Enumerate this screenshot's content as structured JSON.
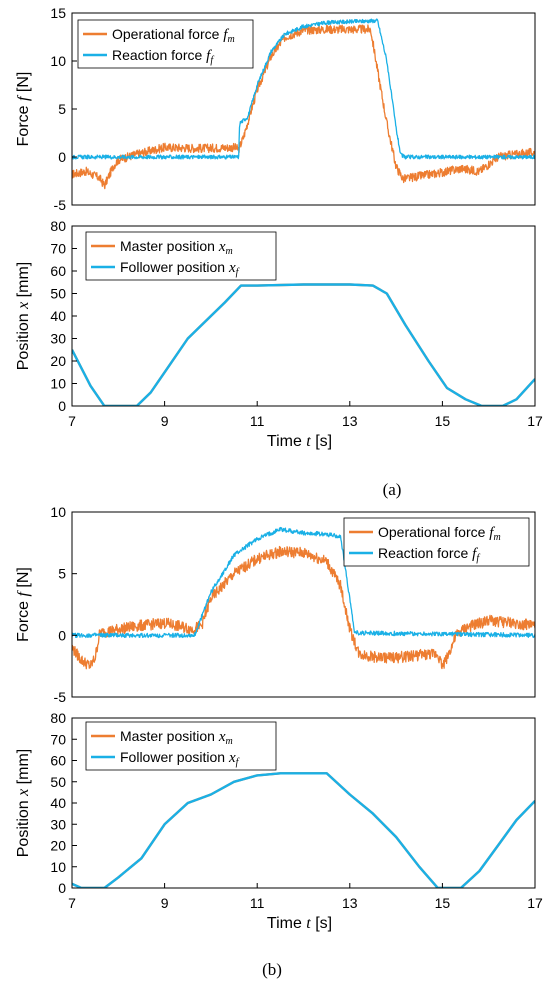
{
  "colors": {
    "master": "#ED7D31",
    "follower": "#1AB0E6"
  },
  "chart_data": [
    {
      "id": "a-force",
      "type": "line",
      "panel": "(a)",
      "ylabel": "Force f [N]",
      "xlim": [
        7,
        17
      ],
      "ylim": [
        -5,
        15
      ],
      "yticks": [
        "-5",
        "0",
        "5",
        "10",
        "15"
      ],
      "xticks": [],
      "legend_position": "top-left",
      "series": [
        {
          "name": "Operational force f_m",
          "label_main": "Operational force ",
          "label_sym": "f",
          "label_sub": "m",
          "color": "#ED7D31",
          "noise": 0.9,
          "x": [
            7.0,
            7.3,
            7.6,
            7.7,
            7.9,
            8.0,
            8.4,
            9.0,
            9.8,
            10.5,
            10.6,
            10.7,
            11.0,
            11.3,
            11.6,
            12.0,
            12.5,
            13.0,
            13.45,
            13.6,
            13.8,
            14.0,
            14.15,
            14.5,
            15.0,
            15.4,
            15.8,
            16.2,
            16.6,
            17.0
          ],
          "y": [
            -1.8,
            -1.5,
            -2.2,
            -3.0,
            -0.9,
            -0.3,
            0.3,
            1.0,
            0.9,
            1.0,
            0.8,
            2.0,
            7.0,
            10.5,
            12.5,
            13.2,
            13.3,
            13.3,
            13.3,
            9.0,
            3.5,
            -1.0,
            -2.3,
            -2.0,
            -1.6,
            -1.2,
            -1.5,
            0.0,
            0.3,
            0.5
          ]
        },
        {
          "name": "Reaction force f_f",
          "label_main": "Reaction force ",
          "label_sym": "f",
          "label_sub": "f",
          "color": "#1AB0E6",
          "noise": 0.4,
          "x": [
            7.0,
            10.6,
            10.62,
            10.8,
            11.0,
            11.3,
            11.6,
            12.0,
            12.5,
            13.0,
            13.6,
            13.8,
            14.0,
            14.1,
            14.2,
            17.0
          ],
          "y": [
            0.0,
            0.0,
            3.5,
            4.2,
            7.5,
            11.0,
            12.8,
            13.6,
            14.0,
            14.1,
            14.2,
            10.0,
            3.0,
            0.2,
            0.0,
            0.0
          ]
        }
      ]
    },
    {
      "id": "a-position",
      "type": "line",
      "panel": "(a)",
      "ylabel": "Position x [mm]",
      "xlabel": "Time t [s]",
      "xlim": [
        7,
        17
      ],
      "ylim": [
        0,
        80
      ],
      "yticks": [
        "0",
        "10",
        "20",
        "30",
        "40",
        "50",
        "60",
        "70",
        "80"
      ],
      "xticks": [
        "7",
        "9",
        "11",
        "13",
        "15",
        "17"
      ],
      "legend_position": "top-left",
      "series": [
        {
          "name": "Master position x_m",
          "label_main": "Master position ",
          "label_sym": "x",
          "label_sub": "m",
          "color": "#ED7D31",
          "noise": 0,
          "x": [
            7.0,
            7.4,
            7.7,
            8.0,
            8.4,
            8.7,
            9.0,
            9.5,
            10.0,
            10.3,
            10.65,
            11.0,
            12.0,
            13.0,
            13.5,
            13.8,
            14.2,
            14.7,
            15.1,
            15.5,
            15.85,
            16.3,
            16.6,
            17.0
          ],
          "y": [
            25.0,
            9.0,
            0.0,
            0.0,
            0.0,
            6.0,
            15.0,
            30.0,
            40.0,
            46.0,
            53.5,
            53.5,
            54.0,
            54.0,
            53.5,
            50.0,
            36.0,
            20.0,
            8.0,
            3.0,
            0.0,
            0.0,
            3.0,
            12.0
          ]
        },
        {
          "name": "Follower position x_f",
          "label_main": "Follower position ",
          "label_sym": "x",
          "label_sub": "f",
          "color": "#1AB0E6",
          "noise": 0,
          "x": [
            7.0,
            7.4,
            7.7,
            8.0,
            8.4,
            8.7,
            9.0,
            9.5,
            10.0,
            10.3,
            10.65,
            11.0,
            12.0,
            13.0,
            13.5,
            13.8,
            14.2,
            14.7,
            15.1,
            15.5,
            15.85,
            16.3,
            16.6,
            17.0
          ],
          "y": [
            25.0,
            9.0,
            0.0,
            0.0,
            0.0,
            6.0,
            15.0,
            30.0,
            40.0,
            46.0,
            53.5,
            53.5,
            54.0,
            54.0,
            53.5,
            50.0,
            36.0,
            20.0,
            8.0,
            3.0,
            0.0,
            0.0,
            3.0,
            12.0
          ]
        }
      ]
    },
    {
      "id": "b-force",
      "type": "line",
      "panel": "(b)",
      "ylabel": "Force f [N]",
      "xlim": [
        7,
        17
      ],
      "ylim": [
        -5,
        10
      ],
      "yticks": [
        "-5",
        "0",
        "5",
        "10"
      ],
      "xticks": [],
      "legend_position": "top-right",
      "series": [
        {
          "name": "Operational force f_m",
          "label_main": "Operational force ",
          "label_sym": "f",
          "label_sub": "m",
          "color": "#ED7D31",
          "noise": 0.9,
          "x": [
            7.0,
            7.2,
            7.4,
            7.5,
            7.6,
            8.0,
            8.5,
            9.0,
            9.6,
            9.8,
            10.0,
            10.5,
            11.0,
            11.5,
            12.0,
            12.5,
            12.8,
            13.0,
            13.2,
            13.6,
            14.0,
            14.5,
            14.9,
            15.0,
            15.1,
            15.3,
            15.5,
            16.0,
            16.5,
            17.0
          ],
          "y": [
            -1.0,
            -2.0,
            -2.5,
            -1.8,
            0.2,
            0.5,
            0.8,
            1.0,
            0.5,
            0.8,
            3.0,
            5.0,
            6.2,
            6.8,
            6.7,
            6.0,
            4.0,
            0.5,
            -1.5,
            -1.8,
            -1.8,
            -1.6,
            -1.5,
            -2.5,
            -1.8,
            0.0,
            0.6,
            1.2,
            1.0,
            0.8
          ]
        },
        {
          "name": "Reaction force f_f",
          "label_main": "Reaction force ",
          "label_sym": "f",
          "label_sub": "f",
          "color": "#1AB0E6",
          "noise": 0.35,
          "x": [
            7.0,
            9.65,
            9.8,
            10.0,
            10.5,
            11.0,
            11.5,
            12.0,
            12.5,
            12.8,
            13.0,
            13.1,
            17.0
          ],
          "y": [
            0.0,
            0.0,
            1.5,
            3.5,
            6.5,
            7.8,
            8.6,
            8.3,
            8.2,
            8.0,
            3.0,
            0.2,
            0.0
          ]
        }
      ]
    },
    {
      "id": "b-position",
      "type": "line",
      "panel": "(b)",
      "ylabel": "Position x [mm]",
      "xlabel": "Time t [s]",
      "xlim": [
        7,
        17
      ],
      "ylim": [
        0,
        80
      ],
      "yticks": [
        "0",
        "10",
        "20",
        "30",
        "40",
        "50",
        "60",
        "70",
        "80"
      ],
      "xticks": [
        "7",
        "9",
        "11",
        "13",
        "15",
        "17"
      ],
      "legend_position": "top-left",
      "series": [
        {
          "name": "Master position x_m",
          "label_main": "Master position ",
          "label_sym": "x",
          "label_sub": "m",
          "color": "#ED7D31",
          "noise": 0,
          "x": [
            7.0,
            7.2,
            7.7,
            8.0,
            8.5,
            9.0,
            9.5,
            10.0,
            10.5,
            11.0,
            11.5,
            12.0,
            12.5,
            13.0,
            13.5,
            14.0,
            14.5,
            14.9,
            15.1,
            15.4,
            15.8,
            16.2,
            16.6,
            17.0
          ],
          "y": [
            2.0,
            0.0,
            0.0,
            5.0,
            14.0,
            30.0,
            40.0,
            44.0,
            50.0,
            53.0,
            54.0,
            54.0,
            54.0,
            44.0,
            35.0,
            24.0,
            10.0,
            0.0,
            0.0,
            0.0,
            8.0,
            20.0,
            32.0,
            41.0
          ]
        },
        {
          "name": "Follower position x_f",
          "label_main": "Follower position ",
          "label_sym": "x",
          "label_sub": "f",
          "color": "#1AB0E6",
          "noise": 0,
          "x": [
            7.0,
            7.2,
            7.7,
            8.0,
            8.5,
            9.0,
            9.5,
            10.0,
            10.5,
            11.0,
            11.5,
            12.0,
            12.5,
            13.0,
            13.5,
            14.0,
            14.5,
            14.9,
            15.1,
            15.4,
            15.8,
            16.2,
            16.6,
            17.0
          ],
          "y": [
            2.0,
            0.0,
            0.0,
            5.0,
            14.0,
            30.0,
            40.0,
            44.0,
            50.0,
            53.0,
            54.0,
            54.0,
            54.0,
            44.0,
            35.0,
            24.0,
            10.0,
            0.0,
            0.0,
            0.0,
            8.0,
            20.0,
            32.0,
            41.0
          ]
        }
      ]
    }
  ],
  "captions": {
    "a": "(a)",
    "b": "(b)"
  }
}
